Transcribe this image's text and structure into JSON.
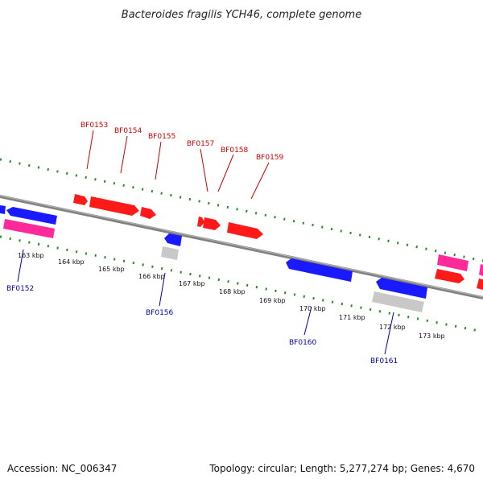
{
  "title": "Bacteroides fragilis YCH46, complete genome",
  "footer": {
    "accession": "Accession: NC_006347",
    "summary": "Topology: circular; Length: 5,277,274 bp; Genes: 4,670"
  },
  "colors": {
    "backbone": "#808080",
    "tick": "#2a8a2a",
    "forward_gene": "#ff1a1a",
    "reverse_gene": "#1a1aff",
    "pink_gene": "#ff2a9a",
    "gray_gene": "#c8c8c8",
    "label_forward": "#cc0000",
    "label_reverse": "#0000aa"
  },
  "ticks": [
    "163 kbp",
    "164 kbp",
    "165 kbp",
    "166 kbp",
    "167 kbp",
    "168 kbp",
    "169 kbp",
    "170 kbp",
    "171 kbp",
    "172 kbp",
    "173 kbp"
  ],
  "gene_labels": {
    "top": [
      "BF0153",
      "BF0154",
      "BF0155",
      "BF0157",
      "BF0158",
      "BF0159"
    ],
    "bottom": [
      "BF0152",
      "BF0156",
      "BF0160",
      "BF0161"
    ]
  }
}
